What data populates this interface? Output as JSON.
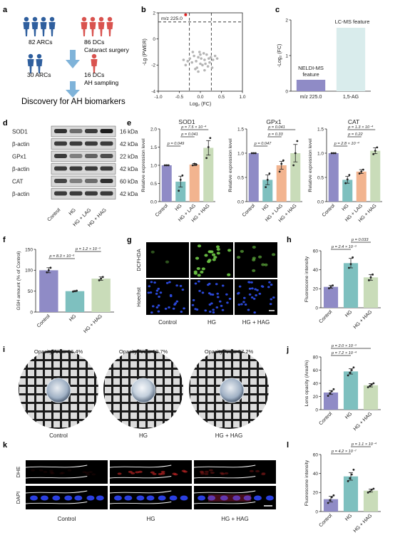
{
  "panels": {
    "a": {
      "label": "a",
      "arcs_1": "82 ARCs",
      "dcs_1": "86 DCs",
      "step1": "Cataract surgery",
      "arcs_2": "30 ARCs",
      "dcs_2": "16 DCs",
      "step2": "AH sampling",
      "conclusion": "Discovery for AH biomarkers"
    },
    "b": {
      "label": "b",
      "annotation": "m/z 225.0"
    },
    "c": {
      "label": "c",
      "bar1_label": "NELDI-MS feature",
      "bar2_label": "LC-MS feature"
    },
    "d": {
      "label": "d",
      "rows": [
        {
          "protein": "SOD1",
          "size": "16 kDa"
        },
        {
          "protein": "β-actin",
          "size": "42 kDa"
        },
        {
          "protein": "GPx1",
          "size": "22 kDa"
        },
        {
          "protein": "β-actin",
          "size": "42 kDa"
        },
        {
          "protein": "CAT",
          "size": "60 kDa"
        },
        {
          "protein": "β-actin",
          "size": "42 kDa"
        }
      ],
      "lanes": [
        "Control",
        "HG",
        "HG + LAG",
        "HG + HAG"
      ]
    },
    "e": {
      "label": "e"
    },
    "f": {
      "label": "f"
    },
    "g": {
      "label": "g",
      "row_labels": [
        "DCFHDA",
        "Hoechst"
      ],
      "col_labels": [
        "Control",
        "HG",
        "HG + HAG"
      ]
    },
    "h": {
      "label": "h"
    },
    "i": {
      "label": "i",
      "opacity": [
        "Opacity Area: 26.4%",
        "Opacity Area: 60.7%",
        "Opacity Area: 37.2%"
      ],
      "col_labels": [
        "Control",
        "HG",
        "HG + HAG"
      ]
    },
    "j": {
      "label": "j"
    },
    "k": {
      "label": "k",
      "row_labels": [
        "DHE",
        "DAPI"
      ],
      "col_labels": [
        "Control",
        "HG",
        "HG + HAG"
      ]
    },
    "l": {
      "label": "l"
    }
  },
  "colors": {
    "control": "#8f8bc6",
    "hg": "#7ec0bf",
    "lag": "#f2b48f",
    "hag": "#c9dcb9",
    "person_blue": "#2f5f9e",
    "person_red": "#d9534f",
    "arrow": "#7fb3d9",
    "volcano_red": "#e02020",
    "volcano_grey": "#b5b5b5"
  },
  "chart_data": [
    {
      "panel": "b",
      "type": "scatter",
      "xlabel": "Log₂ (FC)",
      "ylabel": "-Lg (PWER)",
      "xlim": [
        -1.0,
        1.0
      ],
      "ylim": [
        -4,
        2
      ],
      "xticks": [
        "-1.0",
        "-0.5",
        "0.0",
        "0.5",
        "1.0"
      ],
      "yticks": [
        "2",
        "0",
        "-2",
        "-4"
      ],
      "threshold_y": 1.3,
      "threshold_x": [
        -0.26,
        0.26
      ],
      "highlight": {
        "x": -0.35,
        "y": 1.85,
        "label": "m/z 225.0"
      },
      "points": [
        [
          -0.05,
          -1.4
        ],
        [
          0.02,
          -1.5
        ],
        [
          -0.1,
          -1.7
        ],
        [
          0.1,
          -1.6
        ],
        [
          0.0,
          -1.9
        ],
        [
          -0.15,
          -1.3
        ],
        [
          0.15,
          -1.2
        ],
        [
          0.05,
          -2.0
        ],
        [
          -0.2,
          -1.8
        ],
        [
          0.2,
          -1.5
        ],
        [
          -0.08,
          -2.2
        ],
        [
          0.12,
          -1.9
        ],
        [
          0.25,
          -1.4
        ],
        [
          -0.25,
          -1.5
        ],
        [
          0.3,
          -1.6
        ],
        [
          -0.3,
          -1.7
        ],
        [
          0.08,
          -1.1
        ],
        [
          -0.02,
          -1.0
        ],
        [
          0.18,
          -2.1
        ],
        [
          -0.12,
          -2.3
        ],
        [
          0.35,
          -1.3
        ],
        [
          -0.05,
          -2.5
        ],
        [
          0.22,
          -1.8
        ],
        [
          -0.35,
          -2.0
        ],
        [
          0.0,
          -1.2
        ],
        [
          0.4,
          -1.5
        ],
        [
          -0.4,
          -1.6
        ],
        [
          0.1,
          -2.4
        ],
        [
          -0.18,
          -1.0
        ],
        [
          0.28,
          -2.2
        ]
      ]
    },
    {
      "panel": "c",
      "type": "bar",
      "categories": [
        "m/z 225.0",
        "1,5-AG"
      ],
      "values": [
        0.32,
        1.78
      ],
      "ylabel": "-Log₂ (FC)",
      "ylim": [
        0,
        2
      ],
      "yticks": [
        "0",
        "1",
        "2"
      ],
      "colors": [
        "#8f8bc6",
        "#d9ecec"
      ]
    },
    {
      "panel": "e",
      "type": "bar",
      "title": "SOD1",
      "categories": [
        "Control",
        "HG",
        "HG + LAG",
        "HG + HAG"
      ],
      "values": [
        1.0,
        0.55,
        1.02,
        1.48
      ],
      "errors": [
        0.0,
        0.15,
        0.03,
        0.2
      ],
      "points": [
        [
          1.0,
          1.0,
          1.0
        ],
        [
          0.3,
          0.6,
          0.72
        ],
        [
          1.0,
          1.04,
          1.02
        ],
        [
          1.2,
          1.5,
          1.75
        ]
      ],
      "ylabel": "Relative expression level",
      "ylim": [
        0,
        2.0
      ],
      "yticks": [
        "0.0",
        "0.5",
        "1.0",
        "1.5",
        "2.0"
      ],
      "pvalues": [
        "p = 0.049",
        "p = 0.041",
        "p = 7.5 × 10⁻⁴"
      ]
    },
    {
      "panel": "e",
      "type": "bar",
      "title": "GPx1",
      "categories": [
        "Control",
        "HG",
        "HG + LAG",
        "HG + HAG"
      ],
      "values": [
        1.0,
        0.45,
        0.75,
        1.0
      ],
      "errors": [
        0.0,
        0.1,
        0.08,
        0.18
      ],
      "points": [
        [
          1.0,
          1.0,
          1.0
        ],
        [
          0.3,
          0.45,
          0.58
        ],
        [
          0.62,
          0.78,
          0.85
        ],
        [
          0.75,
          1.0,
          1.25
        ]
      ],
      "ylabel": "Relative expression level",
      "ylim": [
        0,
        1.5
      ],
      "yticks": [
        "0.0",
        "0.5",
        "1.0",
        "1.5"
      ],
      "pvalues": [
        "p = 0.047",
        "p = 0.33",
        "p = 0.041"
      ]
    },
    {
      "panel": "e",
      "type": "bar",
      "title": "CAT",
      "categories": [
        "Control",
        "HG",
        "HG + LAG",
        "HG + HAG"
      ],
      "values": [
        1.0,
        0.45,
        0.62,
        1.05
      ],
      "errors": [
        0.0,
        0.07,
        0.04,
        0.06
      ],
      "points": [
        [
          1.0,
          1.0,
          1.0
        ],
        [
          0.38,
          0.46,
          0.55
        ],
        [
          0.58,
          0.62,
          0.66
        ],
        [
          0.98,
          1.05,
          1.12
        ]
      ],
      "ylabel": "Relative expression level",
      "ylim": [
        0,
        1.5
      ],
      "yticks": [
        "0.0",
        "0.5",
        "1.0",
        "1.5"
      ],
      "pvalues": [
        "p = 2.8 × 10⁻⁴",
        "p = 0.22",
        "p = 1.3 × 10⁻⁴"
      ]
    },
    {
      "panel": "f",
      "type": "bar",
      "categories": [
        "Control",
        "HG",
        "HG + HAG"
      ],
      "values": [
        100,
        50,
        80
      ],
      "errors": [
        6,
        1,
        4
      ],
      "points": [
        [
          95,
          100,
          106
        ],
        [
          49,
          50,
          51
        ],
        [
          76,
          80,
          84
        ]
      ],
      "ylabel": "GSH amount (% of Control)",
      "ylim": [
        0,
        150
      ],
      "yticks": [
        "0",
        "50",
        "100",
        "150"
      ],
      "pvalues": [
        "p = 8.3 × 10⁻⁶",
        "p = 1.2 × 10⁻³"
      ]
    },
    {
      "panel": "h",
      "type": "bar",
      "categories": [
        "Control",
        "HG",
        "HG + HAG"
      ],
      "values": [
        22,
        47,
        32
      ],
      "errors": [
        1.5,
        5,
        3
      ],
      "points": [
        [
          20.5,
          22,
          23.5
        ],
        [
          42,
          46,
          53
        ],
        [
          29,
          32,
          35
        ]
      ],
      "ylabel": "Fluorescene intensity",
      "ylim": [
        0,
        60
      ],
      "yticks": [
        "0",
        "20",
        "40",
        "60"
      ],
      "pvalues": [
        "p = 2.4 × 10⁻³",
        "p = 0.033"
      ]
    },
    {
      "panel": "j",
      "type": "bar",
      "categories": [
        "Control",
        "HG",
        "HG + HAG"
      ],
      "values": [
        26,
        58,
        37
      ],
      "errors": [
        3,
        4,
        2.5
      ],
      "points": [
        [
          21,
          25,
          28,
          31
        ],
        [
          52,
          56,
          60,
          64
        ],
        [
          34,
          36,
          38,
          40
        ]
      ],
      "ylabel": "Lens opacity (Area%)",
      "ylim": [
        0,
        80
      ],
      "yticks": [
        "0",
        "20",
        "40",
        "60",
        "80"
      ],
      "pvalues": [
        "p = 7.2 × 10⁻⁴",
        "p = 2.0 × 10⁻³"
      ]
    },
    {
      "panel": "l",
      "type": "bar",
      "categories": [
        "Control",
        "HG",
        "HG + HAG"
      ],
      "values": [
        13,
        37,
        22
      ],
      "errors": [
        3,
        4,
        1.5
      ],
      "points": [
        [
          9,
          12,
          15,
          17
        ],
        [
          32,
          35,
          39,
          44
        ],
        [
          20,
          21,
          23,
          24
        ]
      ],
      "ylabel": "Fluorescene intensity",
      "ylim": [
        0,
        60
      ],
      "yticks": [
        "0",
        "20",
        "40",
        "60"
      ],
      "pvalues": [
        "p = 4.2 × 10⁻⁷",
        "p = 1.1 × 10⁻⁴"
      ]
    }
  ]
}
